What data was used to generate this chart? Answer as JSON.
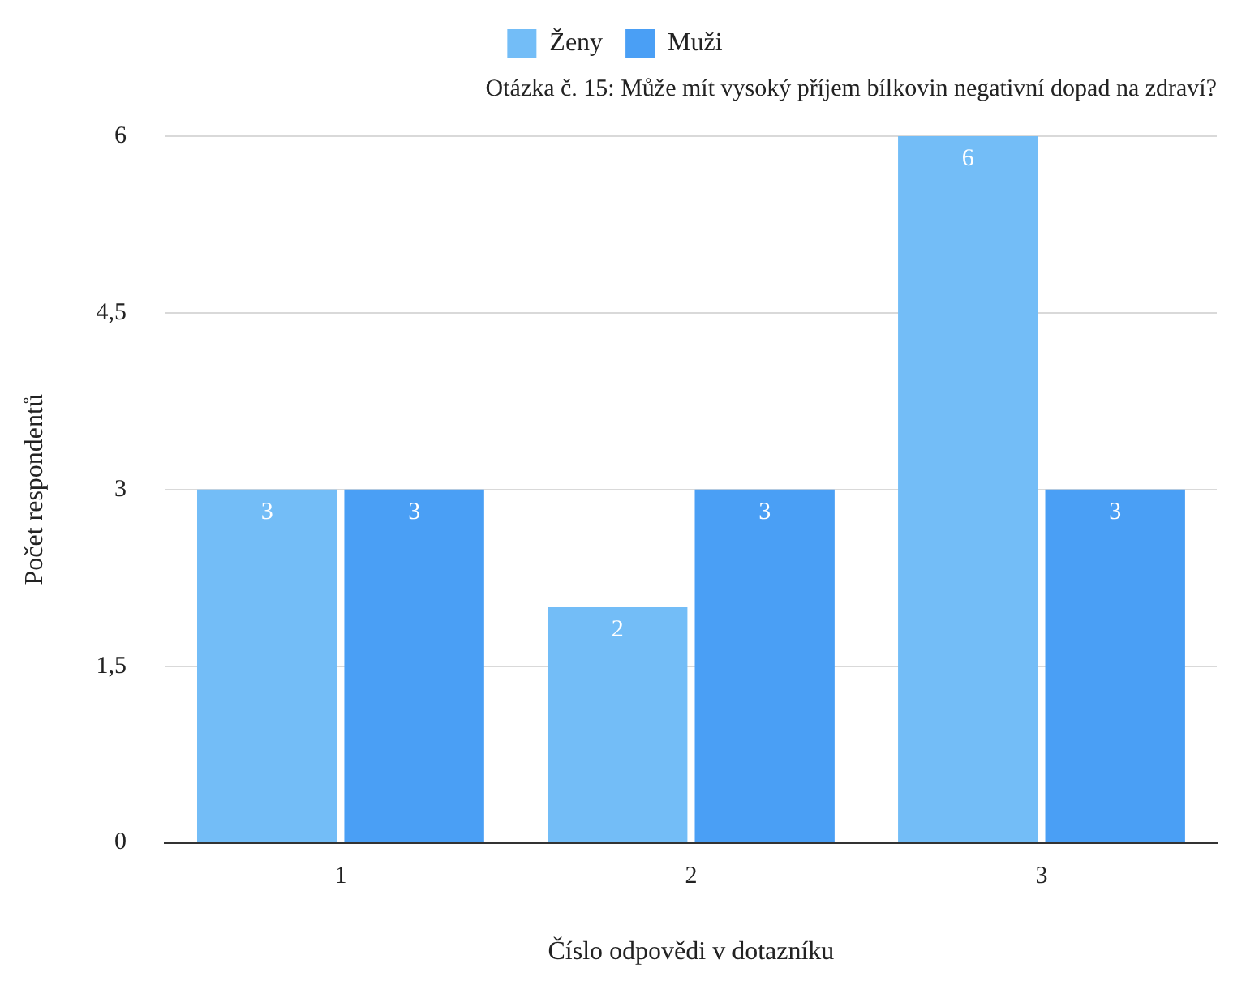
{
  "chart_data": {
    "type": "bar",
    "title": "Otázka č. 15: Může mít vysoký příjem bílkovin negativní dopad na zdraví?",
    "xlabel": "Číslo odpovědi v dotazníku",
    "ylabel": "Počet respondentů",
    "categories": [
      "1",
      "2",
      "3"
    ],
    "series": [
      {
        "name": "Ženy",
        "color": "#73bdf7",
        "values": [
          3,
          2,
          6
        ]
      },
      {
        "name": "Muži",
        "color": "#4a9ff5",
        "values": [
          3,
          3,
          3
        ]
      }
    ],
    "ylim": [
      0,
      6
    ],
    "yticks": [
      {
        "value": 0,
        "label": "0"
      },
      {
        "value": 1.5,
        "label": "1,5"
      },
      {
        "value": 3,
        "label": "3"
      },
      {
        "value": 4.5,
        "label": "4,5"
      },
      {
        "value": 6,
        "label": "6"
      }
    ],
    "grid": "y",
    "legend": "top",
    "data_labels": true
  }
}
